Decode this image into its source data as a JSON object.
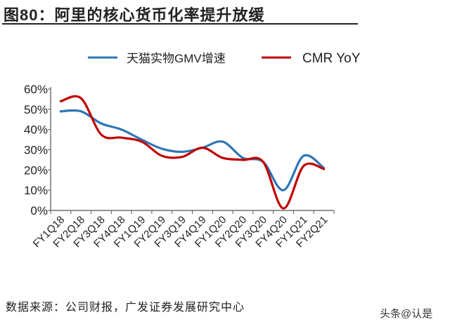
{
  "title": "图80：阿里的核心货币化率提升放缓",
  "source": "数据来源：公司财报，广发证券发展研究中心",
  "watermark": "头条@认是",
  "chart_data": {
    "type": "line",
    "title": "阿里的核心货币化率提升放缓",
    "categories": [
      "FY1Q18",
      "FY2Q18",
      "FY3Q18",
      "FY4Q18",
      "FY1Q19",
      "FY2Q19",
      "FY3Q19",
      "FY4Q19",
      "FY1Q20",
      "FY2Q20",
      "FY3Q20",
      "FY4Q20",
      "FY1Q21",
      "FY2Q21"
    ],
    "series": [
      {
        "name": "天猫实物GMV增速",
        "color": "#2e75b6",
        "values": [
          49,
          49,
          43,
          40,
          35,
          30.5,
          29,
          31,
          34,
          26,
          24,
          10,
          27,
          21
        ]
      },
      {
        "name": "CMR YoY",
        "color": "#c00000",
        "values": [
          54,
          55.5,
          37.5,
          36,
          34,
          27,
          26.5,
          31,
          26,
          25,
          24,
          1,
          22,
          20.5
        ]
      }
    ],
    "yticks": [
      "0%",
      "10%",
      "20%",
      "30%",
      "40%",
      "50%",
      "60%"
    ],
    "ylim": [
      0,
      60
    ],
    "xlabel": "",
    "ylabel": "",
    "grid": false,
    "legend": "top-center"
  }
}
